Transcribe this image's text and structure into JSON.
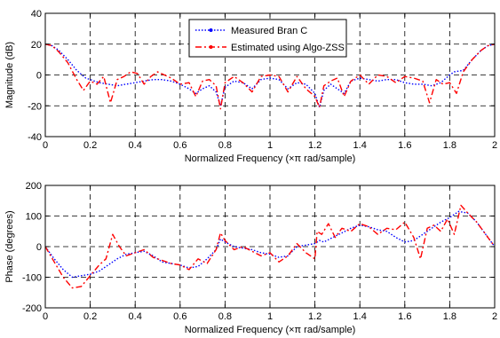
{
  "chart_data": [
    {
      "type": "line",
      "xlabel": "Normalized Frequency  (×π rad/sample)",
      "ylabel": "Magnitude (dB)",
      "xlim": [
        0,
        2
      ],
      "ylim": [
        -40,
        40
      ],
      "xticks": [
        0,
        0.2,
        0.4,
        0.6,
        0.8,
        1,
        1.2,
        1.4,
        1.6,
        1.8,
        2
      ],
      "yticks": [
        -40,
        -20,
        0,
        20,
        40
      ],
      "grid": true,
      "legend": "top-center",
      "series": [
        {
          "name": "Measured Bran C",
          "color": "#0000ff",
          "style": "dotted",
          "x": [
            0,
            0.03,
            0.06,
            0.1,
            0.14,
            0.18,
            0.2,
            0.24,
            0.28,
            0.32,
            0.36,
            0.4,
            0.44,
            0.48,
            0.52,
            0.56,
            0.6,
            0.64,
            0.67,
            0.7,
            0.73,
            0.76,
            0.78,
            0.8,
            0.84,
            0.88,
            0.92,
            0.96,
            1,
            1.04,
            1.08,
            1.12,
            1.16,
            1.2,
            1.22,
            1.24,
            1.27,
            1.3,
            1.33,
            1.36,
            1.4,
            1.44,
            1.48,
            1.52,
            1.56,
            1.6,
            1.64,
            1.68,
            1.72,
            1.76,
            1.8,
            1.82,
            1.86,
            1.9,
            1.94,
            1.97,
            2
          ],
          "y": [
            20,
            19,
            16,
            10,
            3,
            -2,
            -3,
            -5,
            -6,
            -7,
            -6,
            -5,
            -4,
            -3,
            -3,
            -4,
            -6,
            -9,
            -12,
            -9,
            -7,
            -11,
            -20,
            -8,
            -4,
            -5,
            -9,
            -3,
            -2,
            -3,
            -9,
            -5,
            -6,
            -12,
            -21,
            -10,
            -6,
            -9,
            -12,
            -4,
            -2,
            -3,
            -4,
            -3,
            -3,
            -5,
            -6,
            -6,
            -7,
            -5,
            0,
            2,
            3,
            10,
            16,
            19,
            20
          ]
        },
        {
          "name": "Estimated using Algo-ZSS",
          "color": "#ff0000",
          "style": "dash-dot",
          "x": [
            0,
            0.03,
            0.06,
            0.1,
            0.14,
            0.17,
            0.2,
            0.23,
            0.26,
            0.29,
            0.32,
            0.35,
            0.38,
            0.41,
            0.44,
            0.47,
            0.5,
            0.53,
            0.56,
            0.6,
            0.64,
            0.67,
            0.7,
            0.73,
            0.76,
            0.78,
            0.8,
            0.84,
            0.88,
            0.92,
            0.96,
            1,
            1.04,
            1.08,
            1.12,
            1.16,
            1.2,
            1.22,
            1.24,
            1.27,
            1.3,
            1.33,
            1.36,
            1.4,
            1.44,
            1.48,
            1.52,
            1.56,
            1.6,
            1.64,
            1.68,
            1.71,
            1.74,
            1.77,
            1.8,
            1.83,
            1.86,
            1.9,
            1.94,
            1.97,
            2
          ],
          "y": [
            20,
            19,
            15,
            8,
            -3,
            -10,
            -4,
            -6,
            -1,
            -18,
            -3,
            -1,
            2,
            1,
            -6,
            -1,
            2,
            0,
            -2,
            -6,
            -5,
            -14,
            -4,
            -3,
            -7,
            -22,
            -5,
            -1,
            -5,
            -11,
            -1,
            0,
            -1,
            -11,
            -1,
            -9,
            -14,
            -21,
            -7,
            -4,
            -2,
            -14,
            -4,
            0,
            -6,
            0,
            -1,
            -5,
            -1,
            -2,
            -4,
            -18,
            -3,
            -6,
            -5,
            -12,
            2,
            10,
            16,
            19,
            20
          ]
        }
      ]
    },
    {
      "type": "line",
      "xlabel": "Normalized Frequency  (×π rad/sample)",
      "ylabel": "Phase (degrees)",
      "xlim": [
        0,
        2
      ],
      "ylim": [
        -200,
        200
      ],
      "xticks": [
        0,
        0.2,
        0.4,
        0.6,
        0.8,
        1,
        1.2,
        1.4,
        1.6,
        1.8,
        2
      ],
      "yticks": [
        -200,
        -100,
        0,
        100,
        200
      ],
      "grid": true,
      "series": [
        {
          "name": "Measured Bran C",
          "color": "#0000ff",
          "style": "dotted",
          "x": [
            0,
            0.04,
            0.08,
            0.12,
            0.16,
            0.2,
            0.24,
            0.28,
            0.32,
            0.36,
            0.4,
            0.44,
            0.48,
            0.52,
            0.56,
            0.6,
            0.64,
            0.68,
            0.72,
            0.76,
            0.78,
            0.8,
            0.84,
            0.88,
            0.92,
            0.96,
            1,
            1.04,
            1.08,
            1.12,
            1.16,
            1.2,
            1.22,
            1.24,
            1.28,
            1.32,
            1.36,
            1.4,
            1.44,
            1.48,
            1.52,
            1.56,
            1.6,
            1.64,
            1.68,
            1.72,
            1.76,
            1.8,
            1.84,
            1.88,
            1.92,
            1.96,
            2
          ],
          "y": [
            0,
            -40,
            -75,
            -100,
            -95,
            -90,
            -80,
            -60,
            -40,
            -25,
            -20,
            -15,
            -30,
            -50,
            -55,
            -60,
            -70,
            -65,
            -40,
            -10,
            25,
            15,
            0,
            -5,
            -10,
            -20,
            -25,
            -35,
            -30,
            0,
            5,
            10,
            20,
            15,
            30,
            45,
            60,
            70,
            65,
            55,
            50,
            30,
            15,
            20,
            40,
            60,
            80,
            95,
            115,
            110,
            80,
            40,
            0
          ]
        },
        {
          "name": "Estimated using Algo-ZSS",
          "color": "#ff0000",
          "style": "dash-dot",
          "x": [
            0,
            0.04,
            0.08,
            0.12,
            0.16,
            0.2,
            0.24,
            0.27,
            0.3,
            0.33,
            0.36,
            0.4,
            0.44,
            0.48,
            0.52,
            0.56,
            0.6,
            0.64,
            0.68,
            0.72,
            0.76,
            0.78,
            0.8,
            0.84,
            0.88,
            0.92,
            0.96,
            1,
            1.04,
            1.08,
            1.12,
            1.16,
            1.2,
            1.21,
            1.23,
            1.26,
            1.29,
            1.32,
            1.36,
            1.4,
            1.44,
            1.48,
            1.52,
            1.56,
            1.6,
            1.64,
            1.67,
            1.7,
            1.73,
            1.76,
            1.79,
            1.82,
            1.85,
            1.88,
            1.92,
            1.96,
            2
          ],
          "y": [
            0,
            -50,
            -100,
            -135,
            -130,
            -95,
            -60,
            -40,
            40,
            0,
            -30,
            -20,
            -10,
            -35,
            -45,
            -55,
            -60,
            -75,
            -40,
            -55,
            -10,
            45,
            20,
            -10,
            0,
            -15,
            -30,
            -20,
            -50,
            -30,
            10,
            -20,
            -40,
            50,
            40,
            75,
            30,
            60,
            50,
            75,
            65,
            40,
            60,
            55,
            80,
            30,
            -40,
            60,
            70,
            50,
            90,
            40,
            135,
            110,
            80,
            40,
            0
          ]
        }
      ]
    }
  ]
}
